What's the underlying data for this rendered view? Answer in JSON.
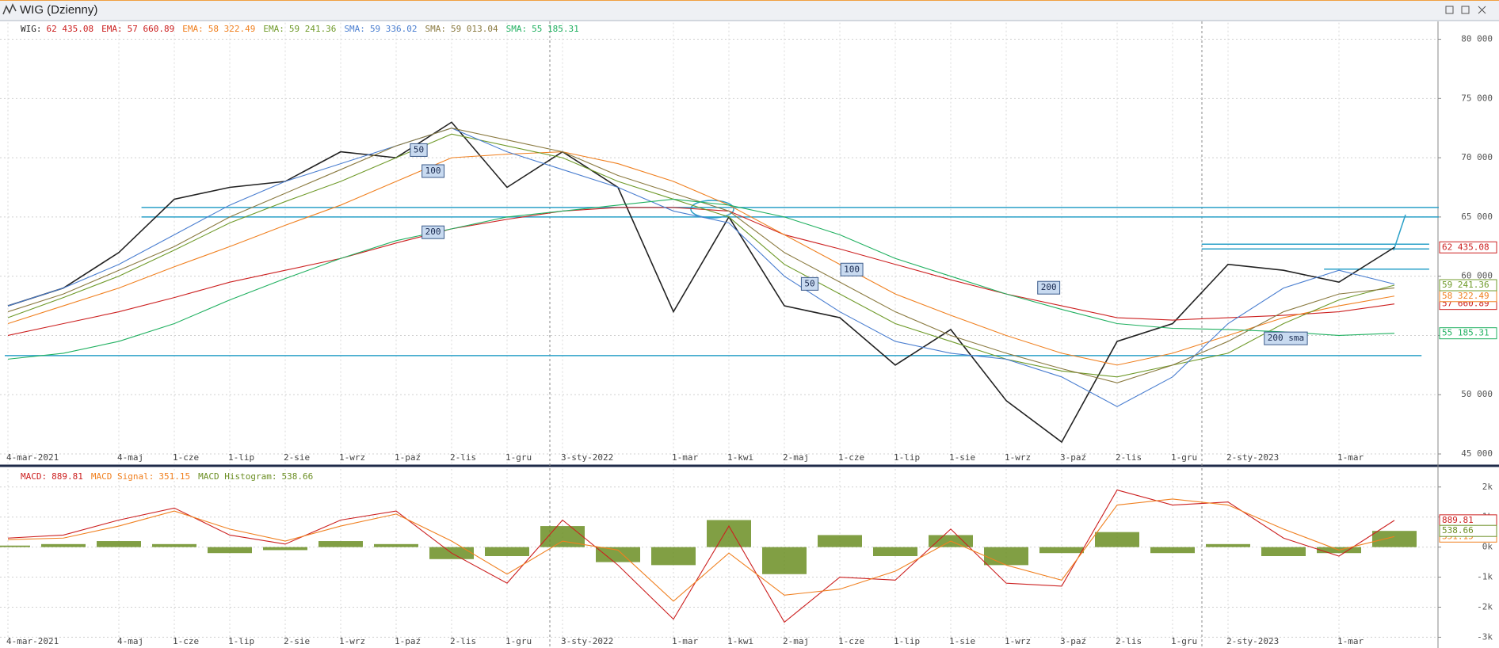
{
  "window_title": "WIG (Dzienny)",
  "chart_data": [
    {
      "type": "line",
      "categories": [
        "4-mar-2021",
        null,
        "4-maj",
        "1-cze",
        "1-lip",
        "2-sie",
        "1-wrz",
        "1-paź",
        "2-lis",
        "1-gru",
        "3-sty-2022",
        null,
        "1-mar",
        "1-kwi",
        "2-maj",
        "1-cze",
        "1-lip",
        "1-sie",
        "1-wrz",
        "3-paź",
        "2-lis",
        "1-gru",
        "2-sty-2023",
        null,
        "1-mar",
        null
      ],
      "series": [
        {
          "name": "WIG:",
          "color": "#222222",
          "badge": true,
          "values": [
            57500,
            59000,
            62000,
            66500,
            67500,
            68000,
            70500,
            70000,
            73000,
            67500,
            70500,
            67500,
            57000,
            65000,
            57500,
            56500,
            52500,
            55500,
            49500,
            46000,
            54500,
            56000,
            61000,
            60500,
            59500,
            62435.08
          ],
          "last_label": "62 435.08"
        },
        {
          "name": "EMA:",
          "color": "#cc2020",
          "badge": true,
          "values": [
            55000,
            56000,
            57000,
            58200,
            59500,
            60500,
            61500,
            62800,
            64000,
            64800,
            65500,
            65800,
            65800,
            65500,
            63500,
            62300,
            61000,
            59700,
            58500,
            57500,
            56500,
            56300,
            56500,
            56700,
            57000,
            57660.89
          ],
          "last_label": "57 660.89"
        },
        {
          "name": "EMA:",
          "color": "#f08020",
          "badge": true,
          "values": [
            56000,
            57500,
            59000,
            60800,
            62500,
            64300,
            66000,
            68000,
            70000,
            70300,
            70500,
            69500,
            68000,
            66000,
            63500,
            61000,
            58500,
            56700,
            55000,
            53500,
            52500,
            53500,
            55000,
            56500,
            57500,
            58322.49
          ],
          "last_label": "58 322.49"
        },
        {
          "name": "EMA:",
          "color": "#6f9a2a",
          "badge": true,
          "values": [
            56500,
            58200,
            60000,
            62200,
            64500,
            66300,
            68000,
            70000,
            72000,
            71000,
            70000,
            68000,
            66500,
            65000,
            61000,
            58500,
            56000,
            54500,
            53000,
            52000,
            51500,
            52500,
            53500,
            56000,
            58000,
            59241.36
          ],
          "last_label": "59 241.36"
        },
        {
          "name": "SMA:",
          "color": "#4a7ed0",
          "badge": false,
          "values": [
            57500,
            59000,
            61000,
            63500,
            66000,
            68000,
            69500,
            71000,
            72500,
            70500,
            69000,
            67500,
            65500,
            64500,
            60000,
            57000,
            54500,
            53500,
            53000,
            51500,
            49000,
            51500,
            56000,
            59000,
            60500,
            59336.02
          ],
          "last_label": "59 336.02"
        },
        {
          "name": "SMA:",
          "color": "#8a7a40",
          "badge": false,
          "values": [
            57000,
            58500,
            60500,
            62500,
            65000,
            67000,
            69000,
            71000,
            72500,
            71500,
            70500,
            68500,
            67000,
            65500,
            62000,
            59500,
            57000,
            55000,
            53500,
            52200,
            51000,
            52500,
            54500,
            57000,
            58500,
            59013.04
          ],
          "last_label": "59 013.04"
        },
        {
          "name": "SMA:",
          "color": "#20b060",
          "badge": true,
          "values": [
            53000,
            53500,
            54500,
            56000,
            58000,
            59800,
            61500,
            63000,
            64000,
            65000,
            65500,
            66000,
            66500,
            66000,
            65000,
            63500,
            61500,
            60000,
            58500,
            57200,
            56000,
            55600,
            55500,
            55300,
            55000,
            55185.31
          ],
          "last_label": "55 185.31"
        }
      ],
      "hlines": [
        65800,
        65000,
        53300,
        62700,
        62300,
        60600
      ],
      "annotations": [
        "50",
        "100",
        "200",
        "50",
        "100",
        "200",
        "200 sma"
      ],
      "ylim": [
        44200,
        81400
      ],
      "yticks": [
        {
          "value": 45000,
          "label": "45 000"
        },
        {
          "value": 50000,
          "label": "50 000"
        },
        {
          "value": 55000,
          "label": "55 000"
        },
        {
          "value": 60000,
          "label": "60 000"
        },
        {
          "value": 65000,
          "label": "65 000"
        },
        {
          "value": 70000,
          "label": "70 000"
        },
        {
          "value": 75000,
          "label": "75 000"
        },
        {
          "value": 80000,
          "label": "80 000"
        }
      ],
      "grid": true
    },
    {
      "type": "line",
      "categories": [
        "4-mar-2021",
        null,
        "4-maj",
        "1-cze",
        "1-lip",
        "2-sie",
        "1-wrz",
        "1-paź",
        "2-lis",
        "1-gru",
        "3-sty-2022",
        null,
        "1-mar",
        "1-kwi",
        "2-maj",
        "1-cze",
        "1-lip",
        "1-sie",
        "1-wrz",
        "3-paź",
        "2-lis",
        "1-gru",
        "2-sty-2023",
        null,
        "1-mar",
        null
      ],
      "series": [
        {
          "name": "MACD:",
          "color": "#cc2020",
          "style": "line",
          "badge": true,
          "values": [
            300,
            400,
            900,
            1300,
            400,
            100,
            900,
            1200,
            -200,
            -1200,
            900,
            -600,
            -2400,
            700,
            -2500,
            -1000,
            -1100,
            600,
            -1200,
            -1300,
            1900,
            1400,
            1500,
            300,
            -300,
            889.81
          ],
          "last_label": "889.81"
        },
        {
          "name": "MACD Signal:",
          "color": "#f08020",
          "style": "line",
          "badge": true,
          "values": [
            250,
            300,
            700,
            1200,
            600,
            200,
            700,
            1100,
            200,
            -900,
            200,
            -100,
            -1800,
            -200,
            -1600,
            -1400,
            -800,
            200,
            -600,
            -1100,
            1400,
            1600,
            1400,
            600,
            -100,
            351.15
          ],
          "last_label": "351.15"
        },
        {
          "name": "MACD Histogram:",
          "color": "#6b8e23",
          "style": "bar",
          "badge": true,
          "values": [
            50,
            100,
            200,
            100,
            -200,
            -100,
            200,
            100,
            -400,
            -300,
            700,
            -500,
            -600,
            900,
            -900,
            400,
            -300,
            400,
            -600,
            -200,
            500,
            -200,
            100,
            -300,
            -200,
            538.66
          ],
          "last_label": "538.66"
        }
      ],
      "ylim": [
        -3200,
        2600
      ],
      "yticks": [
        {
          "value": -3000,
          "label": "-3k"
        },
        {
          "value": -2000,
          "label": "-2k"
        },
        {
          "value": -1000,
          "label": "-1k"
        },
        {
          "value": 0,
          "label": "0k"
        },
        {
          "value": 1000,
          "label": "1k"
        },
        {
          "value": 2000,
          "label": "2k"
        }
      ],
      "grid": true
    }
  ]
}
